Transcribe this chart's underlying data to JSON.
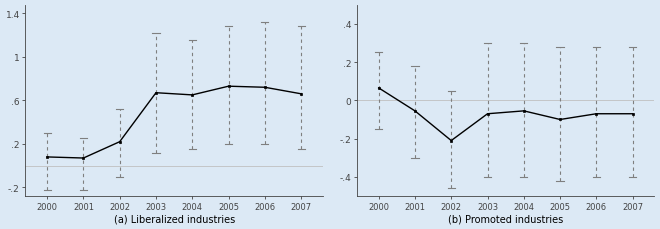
{
  "years": [
    2000,
    2001,
    2002,
    2003,
    2004,
    2005,
    2006,
    2007
  ],
  "lib_coef": [
    0.08,
    0.07,
    0.22,
    0.67,
    0.65,
    0.73,
    0.72,
    0.66
  ],
  "lib_ci_hi": [
    0.3,
    0.25,
    0.52,
    1.22,
    1.15,
    1.28,
    1.32,
    1.28
  ],
  "lib_ci_lo": [
    -0.22,
    -0.22,
    -0.1,
    0.12,
    0.15,
    0.2,
    0.2,
    0.15
  ],
  "lib_ylim": [
    -0.28,
    1.48
  ],
  "lib_yticks": [
    -0.2,
    0.2,
    0.6,
    1.0,
    1.4
  ],
  "lib_ytick_labels": [
    "-.2",
    ".2",
    ".6",
    "1",
    "1.4"
  ],
  "lib_title": "(a) Liberalized industries",
  "pro_coef": [
    0.065,
    -0.055,
    -0.21,
    -0.07,
    -0.055,
    -0.1,
    -0.07,
    -0.07
  ],
  "pro_ci_hi": [
    0.25,
    0.18,
    0.05,
    0.3,
    0.3,
    0.28,
    0.28,
    0.28
  ],
  "pro_ci_lo": [
    -0.15,
    -0.3,
    -0.46,
    -0.4,
    -0.4,
    -0.42,
    -0.4,
    -0.4
  ],
  "pro_ylim": [
    -0.5,
    0.5
  ],
  "pro_yticks": [
    -0.4,
    -0.2,
    0.0,
    0.2,
    0.4
  ],
  "pro_ytick_labels": [
    "-.4",
    "-.2",
    "0",
    ".2",
    ".4"
  ],
  "pro_title": "(b) Promoted industries",
  "bg_color": "#dce9f5",
  "line_color": "#000000",
  "ci_color": "#7f7f7f",
  "zero_line_color": "#c0c0c0"
}
